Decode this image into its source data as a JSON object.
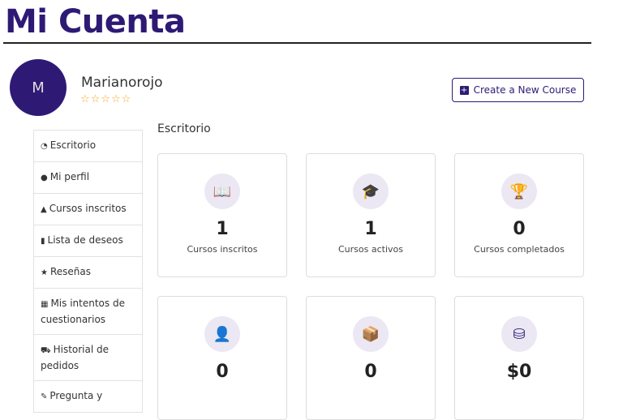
{
  "page_title": "Mi Cuenta",
  "user": {
    "initial": "M",
    "name": "Marianorojo",
    "rating_stars": "☆☆☆☆☆",
    "rating": 0
  },
  "create_button": "Create a New Course",
  "section_title": "Escritorio",
  "sidebar": [
    {
      "icon": "dashboard-icon",
      "glyph": "◔",
      "label": "Escritorio"
    },
    {
      "icon": "user-icon",
      "glyph": "●",
      "label": "Mi perfil"
    },
    {
      "icon": "graduation-cap-icon",
      "glyph": "▲",
      "label": "Cursos inscritos"
    },
    {
      "icon": "bookmark-icon",
      "glyph": "▮",
      "label": "Lista de deseos"
    },
    {
      "icon": "star-icon",
      "glyph": "★",
      "label": "Reseñas"
    },
    {
      "icon": "sitemap-icon",
      "glyph": "▦",
      "label": "Mis intentos de cuestionarios"
    },
    {
      "icon": "cart-icon",
      "glyph": "⛟",
      "label": "Historial de pedidos"
    },
    {
      "icon": "question-icon",
      "glyph": "✎",
      "label": "Pregunta y"
    }
  ],
  "cards": [
    {
      "icon": "book-icon",
      "glyph": "📖",
      "value": "1",
      "label": "Cursos inscritos"
    },
    {
      "icon": "graduation-cap-icon",
      "glyph": "🎓",
      "value": "1",
      "label": "Cursos activos"
    },
    {
      "icon": "trophy-icon",
      "glyph": "🏆",
      "value": "0",
      "label": "Cursos completados"
    },
    {
      "icon": "student-icon",
      "glyph": "👤",
      "value": "0",
      "label": ""
    },
    {
      "icon": "box-icon",
      "glyph": "📦",
      "value": "0",
      "label": ""
    },
    {
      "icon": "coins-icon",
      "glyph": "⛁",
      "value": "$0",
      "label": ""
    }
  ],
  "colors": {
    "brand": "#2e1a75",
    "star": "#f5a623",
    "icon_bg": "#ebe7f3"
  }
}
